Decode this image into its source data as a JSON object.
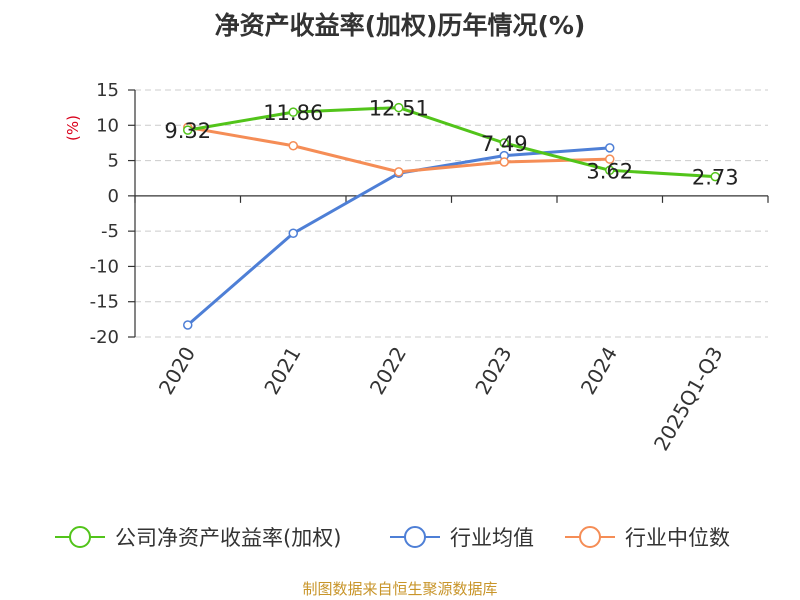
{
  "title": "净资产收益率(加权)历年情况(%)",
  "source": "制图数据来自恒生聚源数据库",
  "chart_data": {
    "type": "line",
    "title": "净资产收益率(加权)历年情况(%)",
    "ylabel": "(%)",
    "xlabel": "",
    "categories": [
      "2020",
      "2021",
      "2022",
      "2023",
      "2024",
      "2025Q1-Q3"
    ],
    "ylim": [
      -20,
      15
    ],
    "yticks": [
      15,
      10,
      5,
      0,
      -5,
      -10,
      -15,
      -20
    ],
    "grid": true,
    "legend_position": "bottom",
    "series": [
      {
        "name": "公司净资产收益率(加权)",
        "color": "#52c41a",
        "values": [
          9.32,
          11.86,
          12.51,
          7.49,
          3.62,
          2.73
        ],
        "show_labels": true
      },
      {
        "name": "行业均值",
        "color": "#4e7fd6",
        "values": [
          -18.3,
          -5.3,
          3.2,
          5.7,
          6.8,
          null
        ],
        "show_labels": false
      },
      {
        "name": "行业中位数",
        "color": "#f58d56",
        "values": [
          9.7,
          7.1,
          3.4,
          4.8,
          5.2,
          null
        ],
        "show_labels": false
      }
    ],
    "data_labels": [
      "9.32",
      "11.86",
      "12.51",
      "7.49",
      "3.62",
      "2.73"
    ]
  },
  "colors": {
    "y_unit": "#d9001b",
    "axis": "#333333",
    "grid": "#cccccc"
  }
}
